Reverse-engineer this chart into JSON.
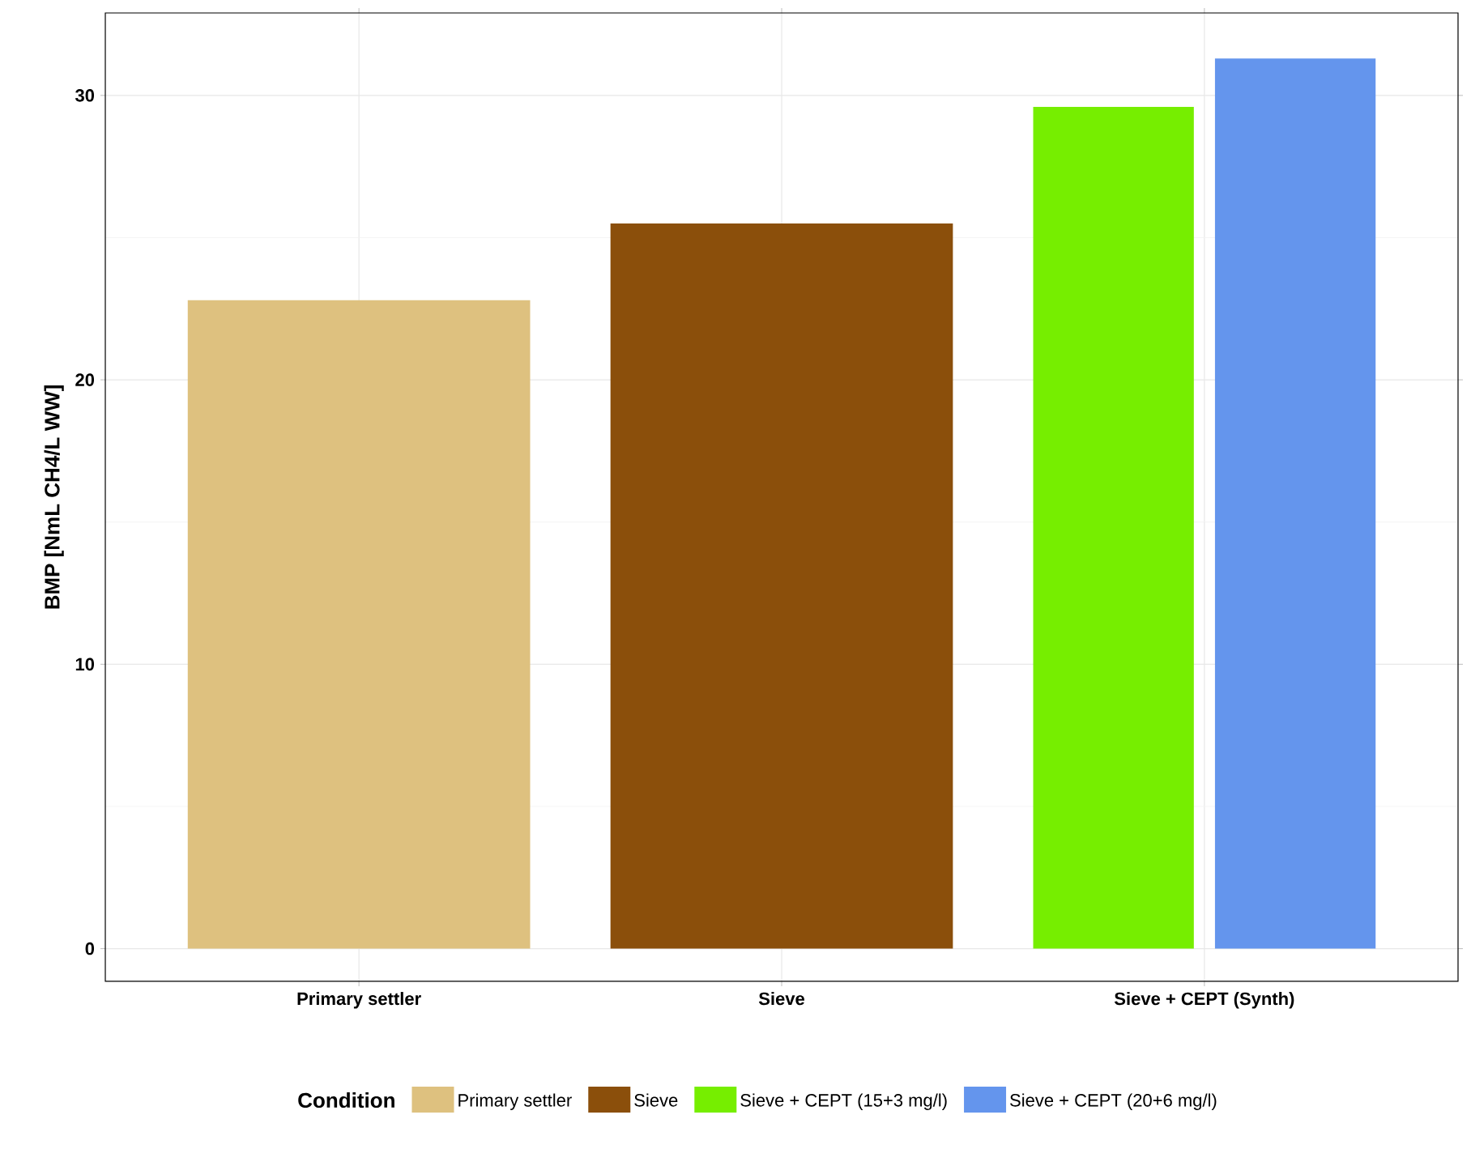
{
  "chart_data": {
    "type": "bar",
    "ylabel": "BMP [NmL CH4/L WW]",
    "legend_title": "Condition",
    "categories": [
      "Primary settler",
      "Sieve",
      "Sieve + CEPT (Synth)"
    ],
    "series": [
      {
        "name": "Primary settler",
        "color": "#dec17f",
        "values": [
          22.8,
          null,
          null
        ]
      },
      {
        "name": "Sieve",
        "color": "#8b4f0b",
        "values": [
          null,
          25.5,
          null
        ]
      },
      {
        "name": "Sieve + CEPT (15+3 mg/l)",
        "color": "#76ee00",
        "values": [
          null,
          null,
          29.6
        ]
      },
      {
        "name": "Sieve + CEPT (20+6 mg/l)",
        "color": "#6495ed",
        "values": [
          null,
          null,
          31.3
        ]
      }
    ],
    "ylim": [
      -1.15,
      32.9
    ],
    "yticks": [
      0,
      10,
      20,
      30
    ],
    "grid": true,
    "legend": "bottom"
  }
}
